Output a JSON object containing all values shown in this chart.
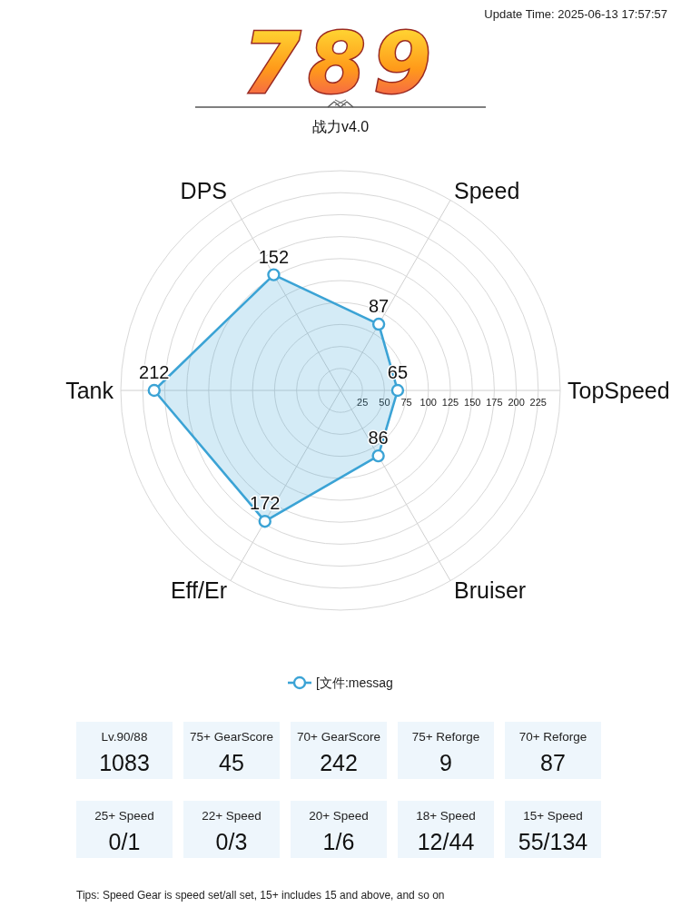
{
  "chart_data": [
    {
      "type": "radar",
      "title": "789",
      "subtitle": "战力v4.0",
      "categories": [
        "Speed",
        "TopSpeed",
        "Bruiser",
        "Eff/Er",
        "Tank",
        "DPS"
      ],
      "series": [
        {
          "name": "[文件:messag",
          "color": "#3ba3d5",
          "values": [
            87,
            65,
            86,
            172,
            212,
            152
          ]
        }
      ],
      "ylim": [
        0,
        250
      ],
      "yticks": [
        25,
        50,
        75,
        100,
        125,
        150,
        175,
        200,
        225
      ],
      "grid": true,
      "legend": "bottom",
      "marker": "circle",
      "data_labels": true,
      "annotations": [
        "Update Time: 2025-06-13 17:57:57",
        "Tips: Speed Gear is speed set/all set, 15+ includes 15 and above, and so on"
      ]
    },
    {
      "type": "other",
      "annotations": [
        "Lv.90/88",
        "1083",
        "75+ GearScore",
        "45",
        "70+ GearScore",
        "242",
        "75+ Reforge",
        "9",
        "70+ Reforge",
        "87",
        "25+ Speed",
        "0/1",
        "22+ Speed",
        "0/3",
        "20+ Speed",
        "1/6",
        "18+ Speed",
        "12/44",
        "15+ Speed",
        "55/134"
      ]
    }
  ]
}
